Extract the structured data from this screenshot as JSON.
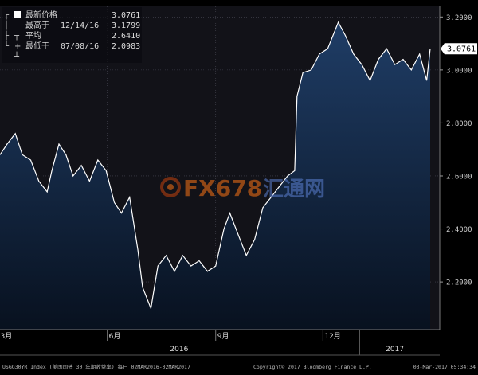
{
  "legend": {
    "items": [
      {
        "label": "最新价格",
        "date": "",
        "value": "3.0761"
      },
      {
        "label": "最高于",
        "date": "12/14/16",
        "value": "3.1799"
      },
      {
        "label": "平均",
        "date": "",
        "value": "2.6410"
      },
      {
        "label": "最低于",
        "date": "07/08/16",
        "value": "2.0983"
      }
    ]
  },
  "last_price_tag": "3.0761",
  "watermark": {
    "text_fx": "FX678",
    "text_cn": "汇通网"
  },
  "footer": {
    "left": "USGG30YR Index (美国国债 30 年期收益率)  每日 02MAR2016-02MAR2017",
    "center": "Copyright© 2017 Bloomberg Finance L.P.",
    "right": "03-Mar-2017 05:34:34"
  },
  "colors": {
    "background": "#000000",
    "plot_bg": "#121218",
    "area_top": "#1f3d66",
    "area_bottom": "#08111f",
    "line": "#ffffff",
    "grid": "#4a4a55"
  },
  "chart_data": {
    "type": "area",
    "title": "",
    "xlabel": "",
    "ylabel": "",
    "ylim": [
      2.02,
      3.24
    ],
    "xlim": [
      "2016-03-02",
      "2017-03-02"
    ],
    "y_ticks": [
      "3.2000",
      "3.0000",
      "2.8000",
      "2.6000",
      "2.4000",
      "2.2000"
    ],
    "x_ticks": [
      {
        "date": "2016-03-01",
        "label": "3月"
      },
      {
        "date": "2016-06-01",
        "label": "6月"
      },
      {
        "date": "2016-09-01",
        "label": "9月"
      },
      {
        "date": "2016-12-01",
        "label": "12月"
      }
    ],
    "year_labels": [
      {
        "date": "2016-08-01",
        "label": "2016"
      },
      {
        "date": "2017-01-31",
        "label": "2017"
      }
    ],
    "grid": true,
    "legend_position": "top-left",
    "series": [
      {
        "name": "USGG30YR Index",
        "x": [
          "2016-03-02",
          "2016-03-08",
          "2016-03-15",
          "2016-03-21",
          "2016-03-28",
          "2016-04-04",
          "2016-04-11",
          "2016-04-15",
          "2016-04-21",
          "2016-04-27",
          "2016-05-03",
          "2016-05-10",
          "2016-05-17",
          "2016-05-24",
          "2016-05-31",
          "2016-06-07",
          "2016-06-13",
          "2016-06-20",
          "2016-06-27",
          "2016-07-01",
          "2016-07-08",
          "2016-07-14",
          "2016-07-21",
          "2016-07-28",
          "2016-08-04",
          "2016-08-11",
          "2016-08-18",
          "2016-08-25",
          "2016-09-01",
          "2016-09-08",
          "2016-09-13",
          "2016-09-20",
          "2016-09-27",
          "2016-10-04",
          "2016-10-11",
          "2016-10-18",
          "2016-10-25",
          "2016-11-01",
          "2016-11-07",
          "2016-11-09",
          "2016-11-14",
          "2016-11-21",
          "2016-11-28",
          "2016-12-05",
          "2016-12-14",
          "2016-12-20",
          "2016-12-27",
          "2017-01-03",
          "2017-01-10",
          "2017-01-17",
          "2017-01-24",
          "2017-01-31",
          "2017-02-07",
          "2017-02-14",
          "2017-02-21",
          "2017-02-27",
          "2017-03-02"
        ],
        "y": [
          2.68,
          2.72,
          2.76,
          2.68,
          2.66,
          2.58,
          2.54,
          2.62,
          2.72,
          2.68,
          2.6,
          2.64,
          2.58,
          2.66,
          2.62,
          2.5,
          2.46,
          2.52,
          2.32,
          2.18,
          2.1,
          2.26,
          2.3,
          2.24,
          2.3,
          2.26,
          2.28,
          2.24,
          2.26,
          2.4,
          2.46,
          2.38,
          2.3,
          2.36,
          2.48,
          2.52,
          2.56,
          2.6,
          2.62,
          2.9,
          2.99,
          3.0,
          3.06,
          3.08,
          3.18,
          3.13,
          3.06,
          3.02,
          2.96,
          3.04,
          3.08,
          3.02,
          3.04,
          3.0,
          3.06,
          2.96,
          3.08
        ]
      }
    ]
  }
}
